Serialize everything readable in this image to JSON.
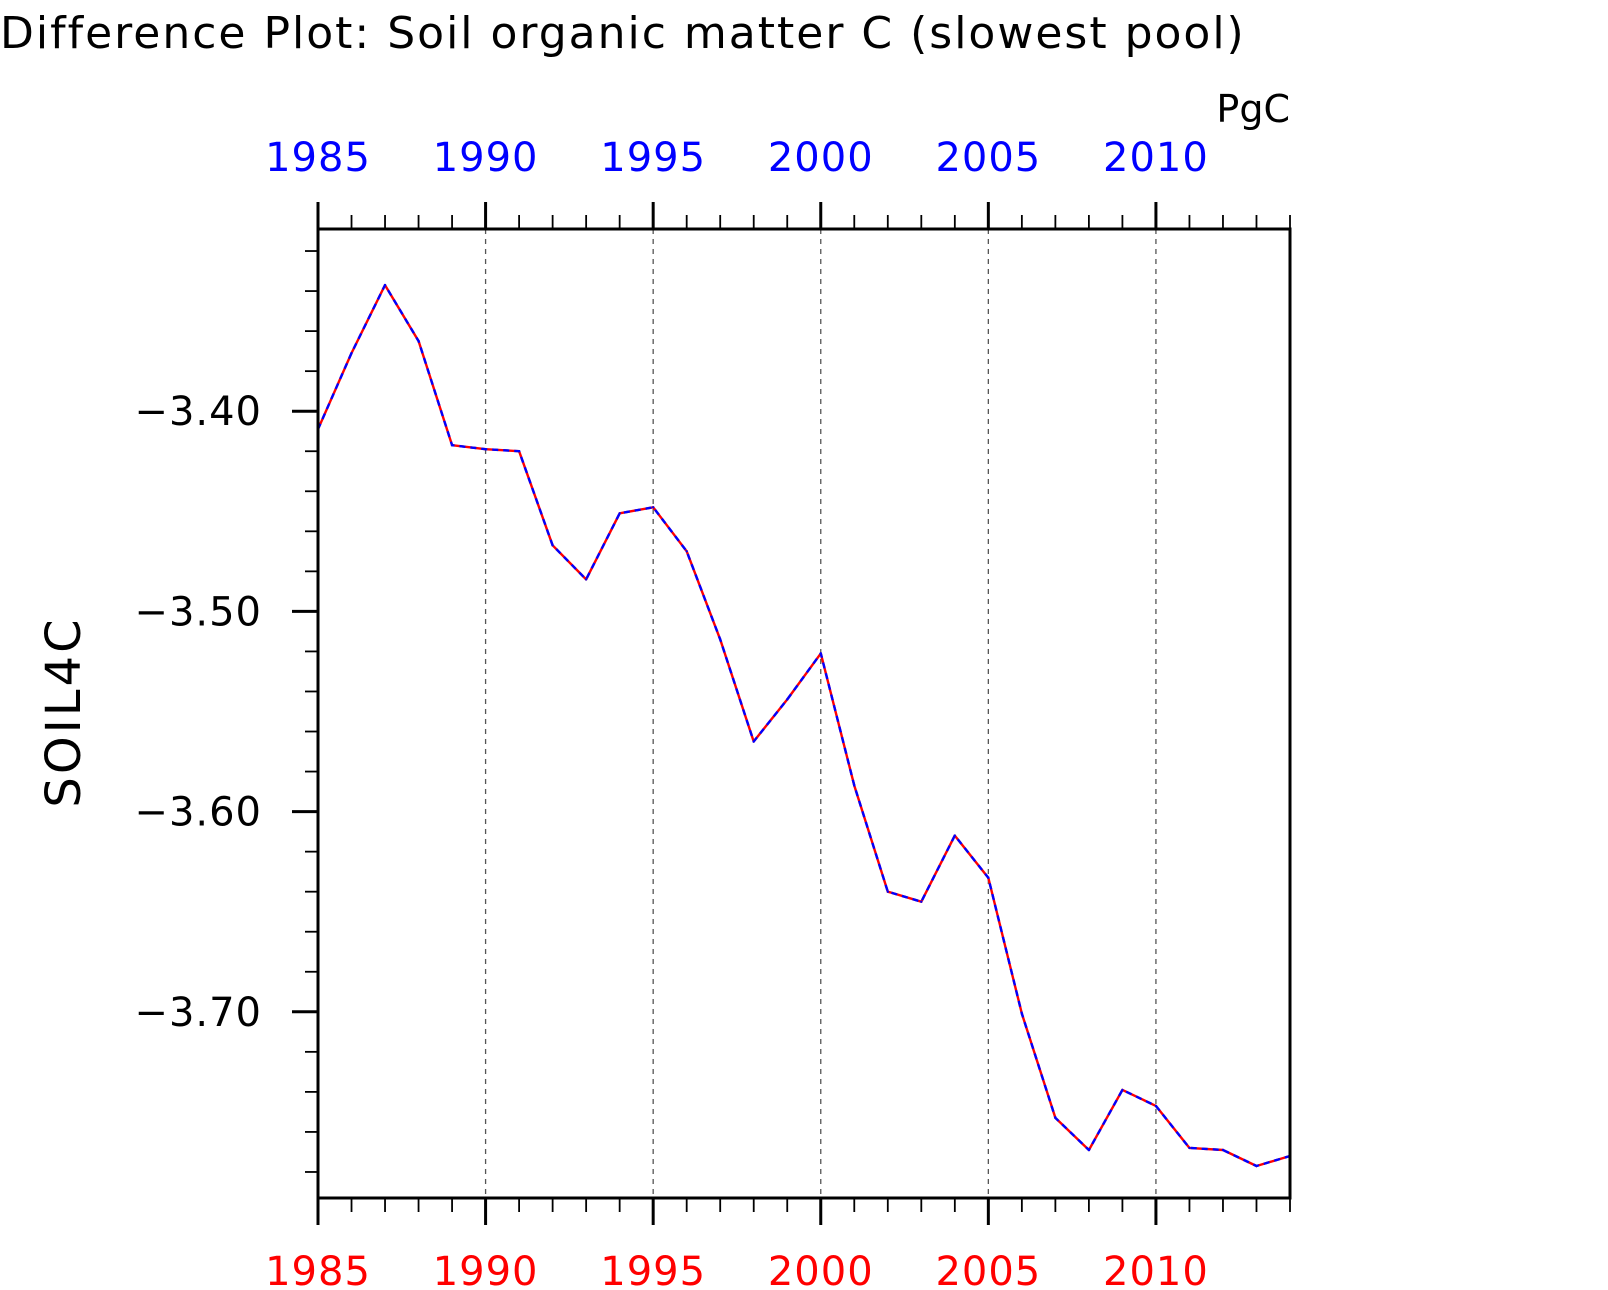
{
  "chart_data": {
    "type": "line",
    "title": "Difference Plot: Soil organic matter C (slowest pool)",
    "units": "PgC",
    "ylabel": "SOIL4C",
    "xlabel": "",
    "xlim": [
      1985,
      2014
    ],
    "ylim": [
      -3.793,
      -3.309
    ],
    "x_ticks": [
      1985,
      1990,
      1995,
      2000,
      2005,
      2010
    ],
    "x_tick_labels": [
      "1985",
      "1990",
      "1995",
      "2000",
      "2005",
      "2010"
    ],
    "y_ticks": [
      -3.4,
      -3.5,
      -3.6,
      -3.7
    ],
    "y_tick_labels": [
      "−3.40",
      "−3.50",
      "−3.60",
      "−3.70"
    ],
    "vertical_gridlines": "dashed at labeled x ticks",
    "top_axis_color": "#0000ff",
    "bottom_axis_color": "#ff0000",
    "x": [
      1985,
      1986,
      1987,
      1988,
      1989,
      1990,
      1991,
      1992,
      1993,
      1994,
      1995,
      1996,
      1997,
      1998,
      1999,
      2000,
      2001,
      2002,
      2003,
      2004,
      2005,
      2006,
      2007,
      2008,
      2009,
      2010,
      2011,
      2012,
      2013,
      2014
    ],
    "series": [
      {
        "color": "#ff0000",
        "style": "solid",
        "values": [
          -3.409,
          -3.371,
          -3.337,
          -3.365,
          -3.417,
          -3.419,
          -3.42,
          -3.467,
          -3.484,
          -3.451,
          -3.448,
          -3.47,
          -3.514,
          -3.565,
          -3.544,
          -3.521,
          -3.587,
          -3.64,
          -3.645,
          -3.612,
          -3.633,
          -3.701,
          -3.753,
          -3.769,
          -3.739,
          -3.747,
          -3.768,
          -3.769,
          -3.777,
          -3.772
        ]
      },
      {
        "color": "#0000ff",
        "style": "dashed",
        "values": [
          -3.409,
          -3.371,
          -3.337,
          -3.365,
          -3.417,
          -3.419,
          -3.42,
          -3.467,
          -3.484,
          -3.451,
          -3.448,
          -3.47,
          -3.514,
          -3.565,
          -3.544,
          -3.521,
          -3.587,
          -3.64,
          -3.645,
          -3.612,
          -3.633,
          -3.701,
          -3.753,
          -3.769,
          -3.739,
          -3.747,
          -3.768,
          -3.769,
          -3.777,
          -3.772
        ]
      }
    ]
  }
}
